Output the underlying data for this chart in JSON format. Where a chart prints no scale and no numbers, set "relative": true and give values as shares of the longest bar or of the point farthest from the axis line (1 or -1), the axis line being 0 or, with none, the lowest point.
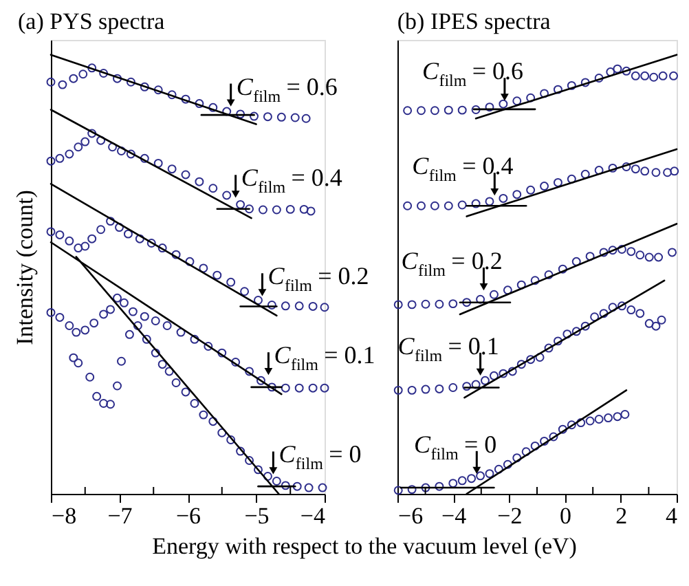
{
  "chart_data": [
    {
      "type": "scatter",
      "title": "(a) PYS spectra",
      "xlabel": "Energy with respect to the vacuum level (eV)",
      "ylabel": "Intensity (count)",
      "relative": true,
      "marker": "circle",
      "grid": false,
      "xlim": [
        -8,
        -4
      ],
      "xticks": [
        -8,
        {
          "value": -7.5,
          "label": null
        },
        -7,
        {
          "value": -6.5,
          "label": null
        },
        -6,
        {
          "value": -5.5,
          "label": null
        },
        -5,
        {
          "value": -4.5,
          "label": null
        },
        -4
      ],
      "series": [
        {
          "color": "#2e2e8c",
          "x": [
            -8,
            -7.83,
            -7.67,
            -7.53,
            -7.4,
            -7.23,
            -7.03,
            -6.83,
            -6.63,
            -6.43,
            -6.23,
            -6.03,
            -5.83,
            -5.63,
            -5.43,
            -5.23,
            -5.03,
            -4.83,
            -4.63,
            -4.43,
            -4.27
          ],
          "values": [
            0.938,
            0.932,
            0.946,
            0.956,
            0.97,
            0.958,
            0.946,
            0.938,
            0.927,
            0.92,
            0.909,
            0.899,
            0.889,
            0.88,
            0.871,
            0.865,
            0.86,
            0.859,
            0.858,
            0.857,
            0.855
          ]
        },
        {
          "type": "line",
          "marker": "none",
          "color": "#000000",
          "x": [
            -8,
            -5.0
          ],
          "values": [
            1.0,
            0.842
          ]
        },
        {
          "type": "line",
          "marker": "none",
          "color": "#000000",
          "x": [
            -5.8,
            -5.03
          ],
          "values": [
            0.863,
            0.863
          ]
        },
        {
          "color": "#2e2e8c",
          "x": [
            -8,
            -7.87,
            -7.73,
            -7.6,
            -7.5,
            -7.4,
            -7.27,
            -7.1,
            -6.97,
            -6.83,
            -6.63,
            -6.43,
            -6.23,
            -6.03,
            -5.83,
            -5.63,
            -5.43,
            -5.23,
            -5.1,
            -4.9,
            -4.7,
            -4.5,
            -4.3,
            -4.2
          ],
          "values": [
            0.758,
            0.764,
            0.774,
            0.79,
            0.802,
            0.821,
            0.805,
            0.79,
            0.781,
            0.774,
            0.764,
            0.753,
            0.74,
            0.727,
            0.711,
            0.696,
            0.68,
            0.659,
            0.649,
            0.647,
            0.647,
            0.648,
            0.648,
            0.644
          ]
        },
        {
          "type": "line",
          "marker": "none",
          "color": "#000000",
          "x": [
            -8,
            -5.07
          ],
          "values": [
            0.875,
            0.628
          ]
        },
        {
          "type": "line",
          "marker": "none",
          "color": "#000000",
          "x": [
            -5.57,
            -5.1
          ],
          "values": [
            0.649,
            0.649
          ]
        },
        {
          "color": "#2e2e8c",
          "x": [
            -8,
            -7.87,
            -7.73,
            -7.6,
            -7.5,
            -7.4,
            -7.27,
            -7.13,
            -7,
            -6.87,
            -6.7,
            -6.53,
            -6.37,
            -6.17,
            -5.97,
            -5.77,
            -5.57,
            -5.37,
            -5.17,
            -4.97,
            -4.77,
            -4.57,
            -4.37,
            -4.17,
            -4
          ],
          "values": [
            0.597,
            0.59,
            0.576,
            0.56,
            0.564,
            0.581,
            0.602,
            0.621,
            0.607,
            0.592,
            0.581,
            0.571,
            0.56,
            0.545,
            0.529,
            0.514,
            0.498,
            0.482,
            0.461,
            0.441,
            0.43,
            0.428,
            0.428,
            0.427,
            0.425
          ]
        },
        {
          "type": "line",
          "marker": "none",
          "color": "#000000",
          "x": [
            -8,
            -4.7
          ],
          "values": [
            0.706,
            0.406
          ]
        },
        {
          "type": "line",
          "marker": "none",
          "color": "#000000",
          "x": [
            -5.23,
            -4.7
          ],
          "values": [
            0.427,
            0.427
          ]
        },
        {
          "color": "#2e2e8c",
          "x": [
            -8,
            -7.87,
            -7.73,
            -7.63,
            -7.5,
            -7.37,
            -7.23,
            -7.13,
            -7.03,
            -6.93,
            -6.8,
            -6.63,
            -6.47,
            -6.3,
            -6.1,
            -5.9,
            -5.7,
            -5.5,
            -5.3,
            -5.1,
            -4.93,
            -4.77,
            -4.57,
            -4.37,
            -4.17,
            -4
          ],
          "values": [
            0.413,
            0.402,
            0.383,
            0.368,
            0.373,
            0.389,
            0.409,
            0.42,
            0.446,
            0.435,
            0.415,
            0.404,
            0.394,
            0.383,
            0.368,
            0.352,
            0.336,
            0.321,
            0.3,
            0.279,
            0.258,
            0.243,
            0.241,
            0.241,
            0.241,
            0.241
          ]
        },
        {
          "type": "line",
          "marker": "none",
          "color": "#000000",
          "x": [
            -8,
            -4.63
          ],
          "values": [
            0.573,
            0.227
          ]
        },
        {
          "type": "line",
          "marker": "none",
          "color": "#000000",
          "x": [
            -5.07,
            -4.63
          ],
          "values": [
            0.243,
            0.243
          ]
        },
        {
          "color": "#2e2e8c",
          "x": [
            -7.67,
            -7.6,
            -7.43,
            -7.33,
            -7.23,
            -7.13,
            -7.03,
            -6.97,
            -6.85,
            -6.73,
            -6.6,
            -6.47,
            -6.37,
            -6.27,
            -6.17,
            -6.03,
            -5.9,
            -5.77,
            -5.63,
            -5.5,
            -5.37,
            -5.23,
            -5.1,
            -4.97,
            -4.83,
            -4.7,
            -4.57,
            -4.4,
            -4.23,
            -4.03
          ],
          "values": [
            0.31,
            0.298,
            0.266,
            0.222,
            0.206,
            0.204,
            0.246,
            0.302,
            0.363,
            0.383,
            0.352,
            0.321,
            0.295,
            0.279,
            0.253,
            0.232,
            0.206,
            0.18,
            0.165,
            0.139,
            0.123,
            0.097,
            0.076,
            0.055,
            0.04,
            0.029,
            0.019,
            0.017,
            0.014,
            0.014
          ]
        },
        {
          "type": "line",
          "marker": "none",
          "color": "#000000",
          "x": [
            -7.63,
            -4.67
          ],
          "values": [
            0.54,
            0
          ]
        },
        {
          "type": "line",
          "marker": "none",
          "color": "#000000",
          "x": [
            -4.97,
            -4.43
          ],
          "values": [
            0.017,
            0.017
          ]
        }
      ],
      "annotations": [
        {
          "text": "C$_{film}$ = 0.6",
          "x": -5.37,
          "y": 0.878
        },
        {
          "text": "C$_{film}$ = 0.4",
          "x": -5.3,
          "y": 0.67
        },
        {
          "text": "C$_{film}$ = 0.2",
          "x": -4.91,
          "y": 0.446
        },
        {
          "text": "C$_{film}$ = 0.1",
          "x": -4.82,
          "y": 0.266
        },
        {
          "text": "C$_{film}$ = 0",
          "x": -4.75,
          "y": 0.04
        }
      ]
    },
    {
      "type": "scatter",
      "title": "(b) IPES spectra",
      "relative": true,
      "marker": "circle",
      "grid": false,
      "xlim": [
        -6,
        4
      ],
      "xticks": [
        -6,
        {
          "value": -5,
          "label": null
        },
        -4,
        {
          "value": -3,
          "label": null
        },
        -2,
        {
          "value": -1,
          "label": null
        },
        0,
        {
          "value": 1,
          "label": null
        },
        2,
        {
          "value": 3,
          "label": null
        },
        4
      ],
      "series": [
        {
          "color": "#2e2e8c",
          "x": [
            -5.64,
            -5.15,
            -4.66,
            -4.17,
            -3.68,
            -3.19,
            -2.7,
            -2.21,
            -1.72,
            -1.23,
            -0.74,
            -0.25,
            0.24,
            0.73,
            1.22,
            1.63,
            1.88,
            2.2,
            2.53,
            2.86,
            3.18,
            3.51,
            3.89
          ],
          "values": [
            0.873,
            0.873,
            0.873,
            0.874,
            0.874,
            0.875,
            0.881,
            0.888,
            0.895,
            0.902,
            0.912,
            0.921,
            0.93,
            0.937,
            0.947,
            0.961,
            0.968,
            0.963,
            0.952,
            0.952,
            0.949,
            0.952,
            0.952
          ]
        },
        {
          "type": "line",
          "marker": "none",
          "color": "#000000",
          "x": [
            -3.19,
            4.0
          ],
          "values": [
            0.855,
            1.0
          ]
        },
        {
          "type": "line",
          "marker": "none",
          "color": "#000000",
          "x": [
            -3.27,
            -1.07
          ],
          "values": [
            0.876,
            0.876
          ]
        },
        {
          "color": "#2e2e8c",
          "x": [
            -5.64,
            -5.15,
            -4.66,
            -4.17,
            -3.68,
            -3.19,
            -2.7,
            -2.21,
            -1.72,
            -1.23,
            -0.74,
            -0.25,
            0.24,
            0.73,
            1.22,
            1.71,
            2.2,
            2.53,
            2.86,
            3.26,
            3.67,
            3.92
          ],
          "values": [
            0.656,
            0.656,
            0.656,
            0.656,
            0.658,
            0.661,
            0.666,
            0.673,
            0.682,
            0.692,
            0.701,
            0.709,
            0.717,
            0.728,
            0.737,
            0.742,
            0.745,
            0.74,
            0.735,
            0.732,
            0.732,
            0.735
          ]
        },
        {
          "type": "line",
          "marker": "none",
          "color": "#000000",
          "x": [
            -3.52,
            4.0
          ],
          "values": [
            0.632,
            0.785
          ]
        },
        {
          "type": "line",
          "marker": "none",
          "color": "#000000",
          "x": [
            -3.52,
            -1.39
          ],
          "values": [
            0.656,
            0.656
          ]
        },
        {
          "color": "#2e2e8c",
          "x": [
            -5.97,
            -5.48,
            -4.99,
            -4.5,
            -4.01,
            -3.52,
            -3.03,
            -2.54,
            -2.05,
            -1.56,
            -1.07,
            -0.58,
            -0.08,
            0.41,
            0.9,
            1.39,
            1.71,
            2.04,
            2.37,
            2.69,
            3.02,
            3.35,
            3.84
          ],
          "values": [
            0.431,
            0.431,
            0.432,
            0.432,
            0.433,
            0.436,
            0.443,
            0.454,
            0.464,
            0.476,
            0.486,
            0.499,
            0.512,
            0.529,
            0.541,
            0.55,
            0.555,
            0.557,
            0.552,
            0.544,
            0.539,
            0.539,
            0.55
          ]
        },
        {
          "type": "line",
          "marker": "none",
          "color": "#000000",
          "x": [
            -3.76,
            4.0
          ],
          "values": [
            0.409,
            0.615
          ]
        },
        {
          "type": "line",
          "marker": "none",
          "color": "#000000",
          "x": [
            -3.76,
            -1.96
          ],
          "values": [
            0.436,
            0.436
          ]
        },
        {
          "color": "#2e2e8c",
          "x": [
            -5.97,
            -5.48,
            -4.99,
            -4.5,
            -4.01,
            -3.52,
            -3.19,
            -2.86,
            -2.54,
            -2.21,
            -1.88,
            -1.56,
            -1.23,
            -0.9,
            -0.58,
            -0.25,
            0.08,
            0.41,
            0.73,
            1.06,
            1.39,
            1.71,
            2.04,
            2.37,
            2.69,
            3.02,
            3.26,
            3.46
          ],
          "values": [
            0.236,
            0.236,
            0.238,
            0.239,
            0.242,
            0.245,
            0.249,
            0.258,
            0.269,
            0.274,
            0.279,
            0.295,
            0.306,
            0.311,
            0.332,
            0.348,
            0.364,
            0.37,
            0.382,
            0.403,
            0.411,
            0.425,
            0.428,
            0.419,
            0.411,
            0.388,
            0.382,
            0.396
          ]
        },
        {
          "type": "line",
          "marker": "none",
          "color": "#000000",
          "x": [
            -3.6,
            3.56
          ],
          "values": [
            0.219,
            0.486
          ]
        },
        {
          "type": "line",
          "marker": "none",
          "color": "#000000",
          "x": [
            -3.6,
            -2.37
          ],
          "values": [
            0.242,
            0.242
          ]
        },
        {
          "color": "#2e2e8c",
          "x": [
            -5.97,
            -5.48,
            -4.99,
            -4.5,
            -4.01,
            -3.68,
            -3.35,
            -3.03,
            -2.7,
            -2.37,
            -2.05,
            -1.72,
            -1.39,
            -1.07,
            -0.74,
            -0.41,
            -0.08,
            0.24,
            0.57,
            0.9,
            1.22,
            1.55,
            1.88,
            2.15
          ],
          "values": [
            0.008,
            0.01,
            0.014,
            0.017,
            0.024,
            0.03,
            0.035,
            0.041,
            0.046,
            0.056,
            0.067,
            0.082,
            0.096,
            0.109,
            0.12,
            0.13,
            0.147,
            0.157,
            0.162,
            0.166,
            0.17,
            0.173,
            0.176,
            0.181
          ]
        },
        {
          "type": "line",
          "marker": "none",
          "color": "#000000",
          "x": [
            -3.52,
            2.2
          ],
          "values": [
            0,
            0.236
          ]
        },
        {
          "type": "line",
          "marker": "none",
          "color": "#000000",
          "x": [
            -5.89,
            -2.54
          ],
          "values": [
            0.014,
            0.014
          ]
        }
      ],
      "annotations": [
        {
          "text": "C$_{film}$ = 0.6",
          "x": -2.16,
          "y": 0.891
        },
        {
          "text": "C$_{film}$ = 0.4",
          "x": -2.52,
          "y": 0.675
        },
        {
          "text": "C$_{film}$ = 0.2",
          "x": -2.91,
          "y": 0.459
        },
        {
          "text": "C$_{film}$ = 0.1",
          "x": -3.03,
          "y": 0.265
        },
        {
          "text": "C$_{film}$ = 0",
          "x": -3.16,
          "y": 0.041
        }
      ]
    }
  ]
}
